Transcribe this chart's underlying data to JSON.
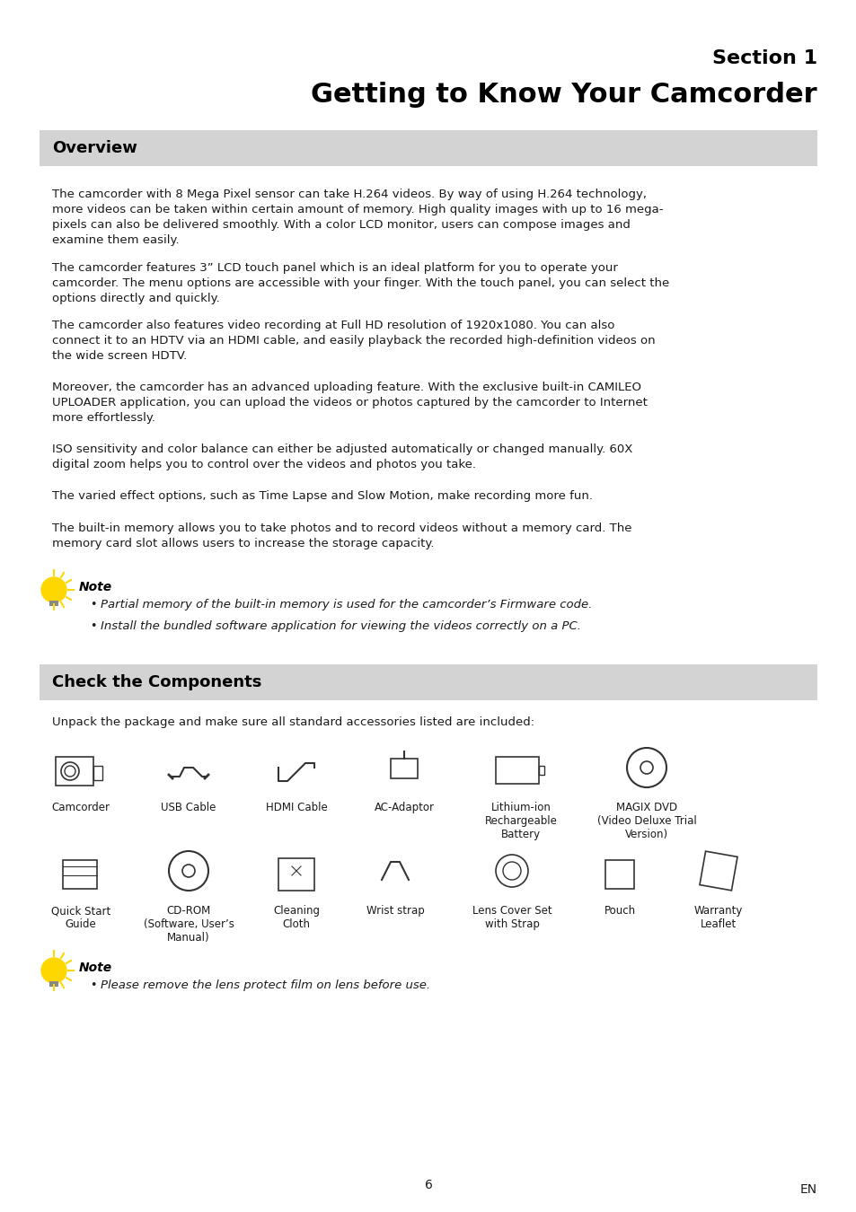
{
  "title_line1": "Section 1",
  "title_line2": "Getting to Know Your Camcorder",
  "section1_header": "Overview",
  "section2_header": "Check the Components",
  "overview_paragraphs": [
    "The camcorder with 8 Mega Pixel sensor can take H.264 videos. By way of using H.264 technology,\nmore videos can be taken within certain amount of memory. High quality images with up to 16 mega-\npixels can also be delivered smoothly. With a color LCD monitor, users can compose images and\nexamine them easily.",
    "The camcorder features 3” LCD touch panel which is an ideal platform for you to operate your\ncamcorder. The menu options are accessible with your finger. With the touch panel, you can select the\noptions directly and quickly.",
    "The camcorder also features video recording at Full HD resolution of 1920x1080. You can also\nconnect it to an HDTV via an HDMI cable, and easily playback the recorded high-definition videos on\nthe wide screen HDTV.",
    "Moreover, the camcorder has an advanced uploading feature. With the exclusive built-in CAMILEO\nUPLOADER application, you can upload the videos or photos captured by the camcorder to Internet\nmore effortlessly.",
    "ISO sensitivity and color balance can either be adjusted automatically or changed manually. 60X\ndigital zoom helps you to control over the videos and photos you take.",
    "The varied effect options, such as Time Lapse and Slow Motion, make recording more fun.",
    "The built-in memory allows you to take photos and to record videos without a memory card. The\nmemory card slot allows users to increase the storage capacity."
  ],
  "note1_title": "Note",
  "note1_bullets": [
    "Partial memory of the built-in memory is used for the camcorder’s Firmware code.",
    "Install the bundled software application for viewing the videos correctly on a PC."
  ],
  "components_intro": "Unpack the package and make sure all standard accessories listed are included:",
  "components_row1": [
    "Camcorder",
    "USB Cable",
    "HDMI Cable",
    "AC-Adaptor",
    "Lithium-ion\nRechargeable\nBattery",
    "MAGIX DVD\n(Video Deluxe Trial\nVersion)"
  ],
  "components_row2": [
    "Quick Start\nGuide",
    "CD-ROM\n(Software, User’s\nManual)",
    "Cleaning\nCloth",
    "Wrist strap",
    "Lens Cover Set\nwith Strap",
    "Pouch",
    "Warranty\nLeaflet"
  ],
  "note2_title": "Note",
  "note2_bullets": [
    "Please remove the lens protect film on lens before use."
  ],
  "page_number": "6",
  "page_label": "EN",
  "bg_color": "#ffffff",
  "header_bg": "#d3d3d3",
  "text_color": "#1a1a1a",
  "title_color": "#000000",
  "body_font_size": 9.5,
  "header_font_size": 13,
  "title_font_size1": 16,
  "title_font_size2": 22
}
